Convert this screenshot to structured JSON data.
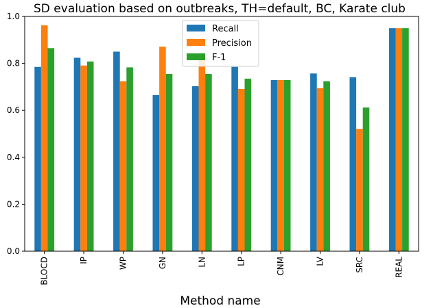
{
  "chart_data": {
    "type": "bar",
    "title": "SD evaluation based on outbreaks, TH=default, BC, Karate club",
    "xlabel": "Method name",
    "ylabel": "",
    "ylim": [
      0,
      1.0
    ],
    "yticks": [
      0.0,
      0.2,
      0.4,
      0.6,
      0.8,
      1.0
    ],
    "ytick_labels": [
      "0.0",
      "0.2",
      "0.4",
      "0.6",
      "0.8",
      "1.0"
    ],
    "categories": [
      "BLOCD",
      "IP",
      "WP",
      "GN",
      "LN",
      "LP",
      "CNM",
      "LV",
      "SRC",
      "REAL"
    ],
    "series": [
      {
        "name": "Recall",
        "color": "#1f77b4",
        "values": [
          0.785,
          0.824,
          0.85,
          0.665,
          0.703,
          0.785,
          0.729,
          0.757,
          0.741,
          0.95
        ]
      },
      {
        "name": "Precision",
        "color": "#ff7f0e",
        "values": [
          0.962,
          0.791,
          0.724,
          0.871,
          0.833,
          0.691,
          0.729,
          0.694,
          0.521,
          0.95
        ]
      },
      {
        "name": "F-1",
        "color": "#2ca02c",
        "values": [
          0.865,
          0.808,
          0.783,
          0.755,
          0.755,
          0.735,
          0.729,
          0.724,
          0.612,
          0.95
        ]
      }
    ],
    "legend": {
      "position": "upper-center"
    },
    "grid": false
  }
}
